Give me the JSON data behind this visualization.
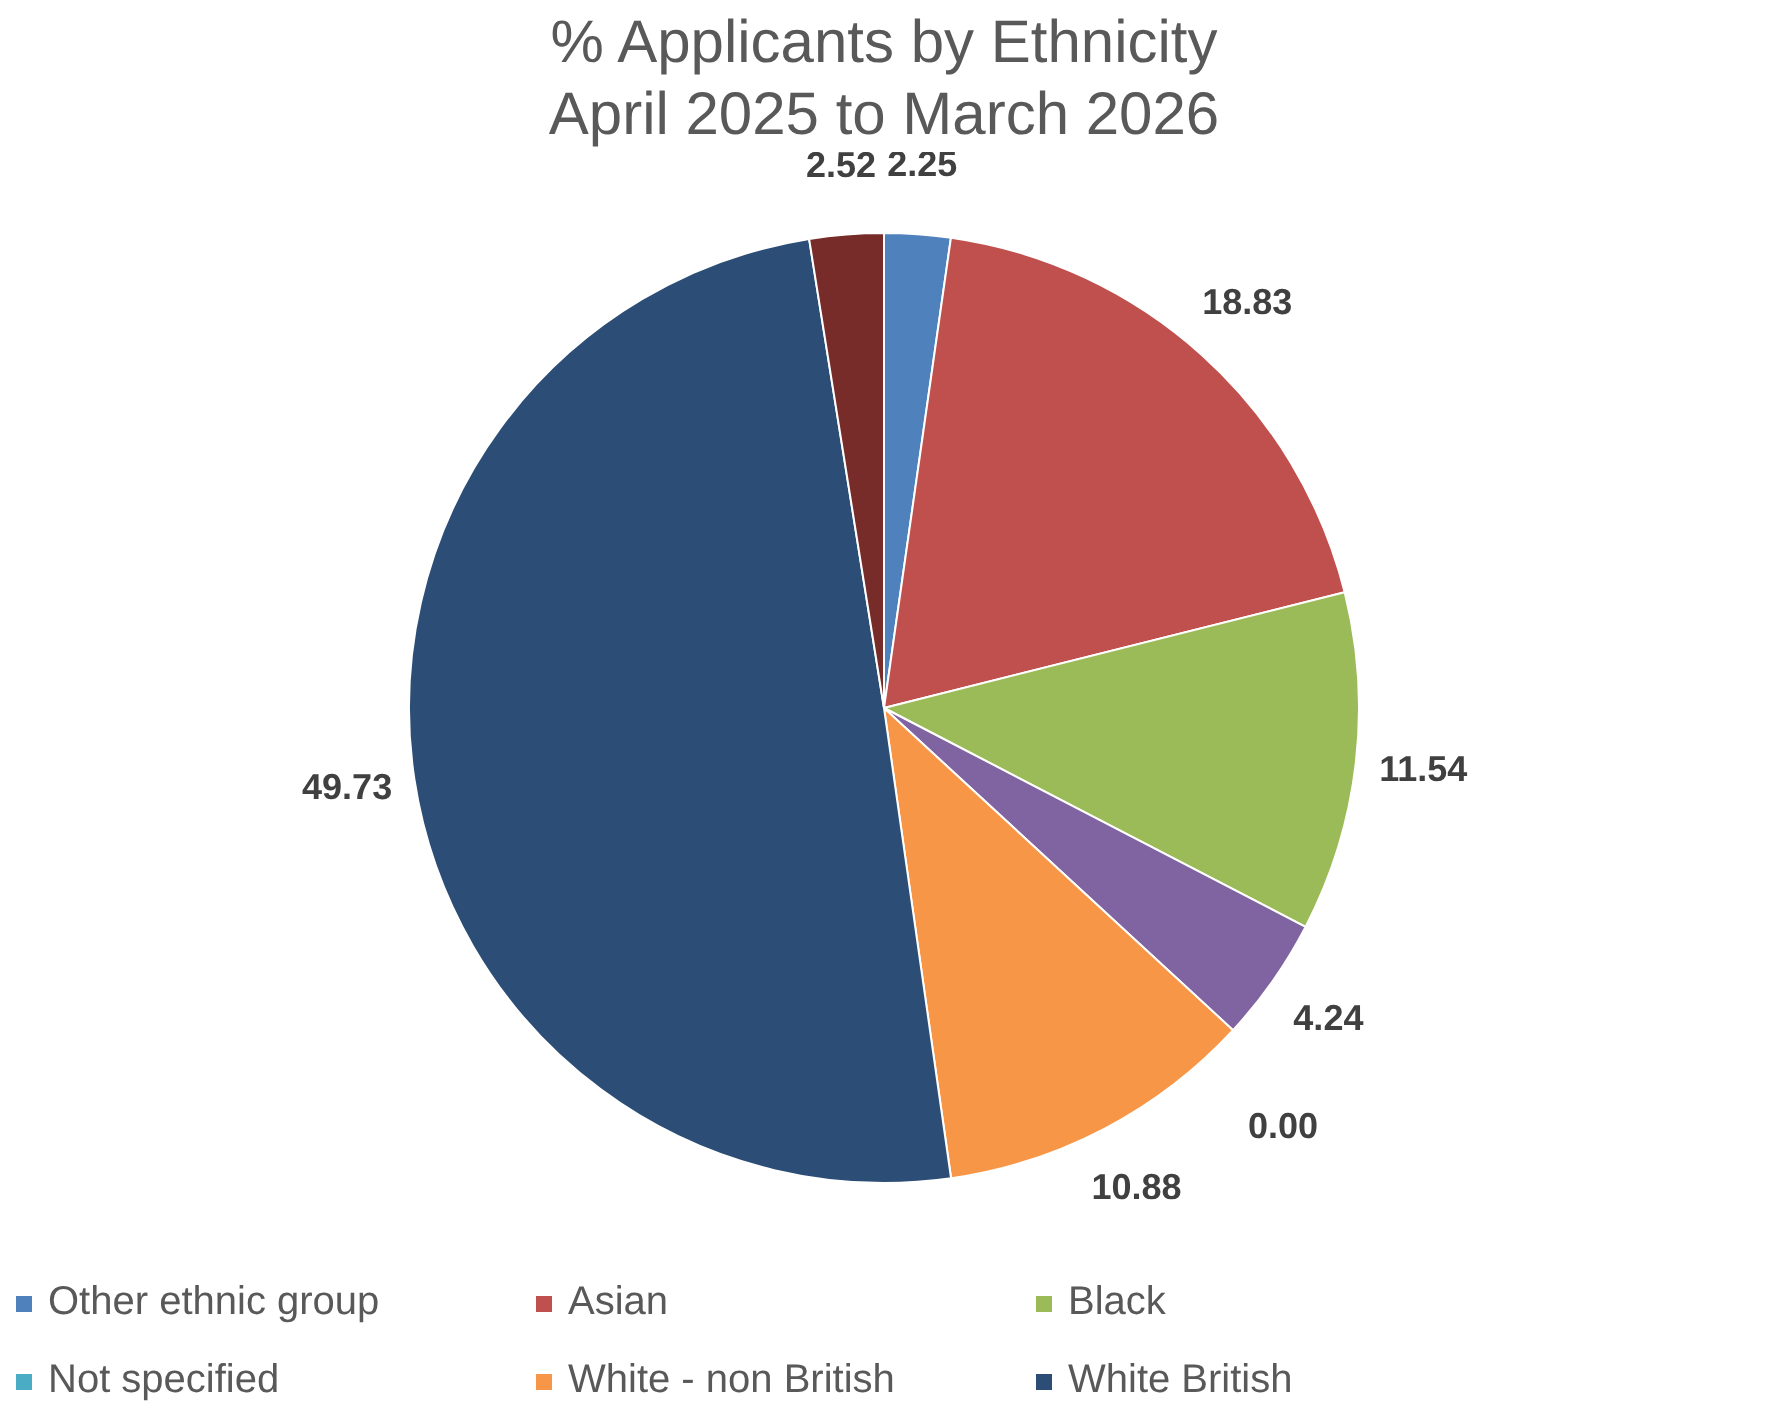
{
  "chart_data": {
    "type": "pie",
    "title": "% Applicants by Ethnicity\nApril 2025 to March 2026",
    "categories": [
      "Other ethnic group",
      "Asian",
      "Black",
      null,
      "Not specified",
      "White - non British",
      "White British",
      null
    ],
    "values": [
      2.25,
      18.83,
      11.54,
      4.24,
      0.0,
      10.88,
      49.73,
      2.52
    ],
    "colors": [
      "#4f81bd",
      "#c0504d",
      "#9bbb59",
      "#8064a2",
      "#4bacc6",
      "#f79646",
      "#2c4d75",
      "#772c2a"
    ],
    "value_labels": [
      "2.25",
      "18.83",
      "11.54",
      "4.24",
      "0.00",
      "10.88",
      "49.73",
      "2.52"
    ],
    "legend": "bottom"
  }
}
